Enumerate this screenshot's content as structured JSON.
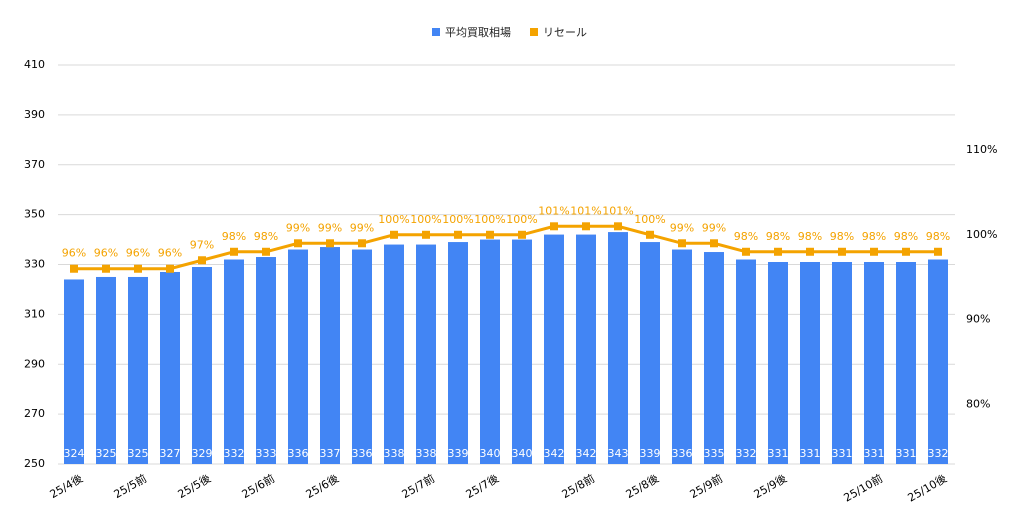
{
  "chart_data": {
    "type": "bar-line",
    "categories": [
      "25/4後",
      null,
      "25/5前",
      null,
      "25/5後",
      null,
      "25/6前",
      null,
      "25/6後",
      null,
      null,
      "25/7前",
      null,
      "25/7後",
      null,
      null,
      "25/8前",
      null,
      "25/8後",
      null,
      "25/9前",
      null,
      "25/9後",
      null,
      null,
      "25/10前",
      null,
      "25/10後"
    ],
    "series": [
      {
        "name": "平均買取相場",
        "type": "bar",
        "color": "#4285f4",
        "values": [
          324,
          325,
          325,
          327,
          329,
          332,
          333,
          336,
          337,
          336,
          338,
          338,
          339,
          340,
          340,
          342,
          342,
          343,
          339,
          336,
          335,
          332,
          331,
          331,
          331,
          331,
          331,
          332
        ]
      },
      {
        "name": "リセール",
        "type": "line",
        "axis": "y2",
        "color": "#f4a300",
        "values": [
          96,
          96,
          96,
          96,
          97,
          98,
          98,
          99,
          99,
          99,
          100,
          100,
          100,
          100,
          100,
          101,
          101,
          101,
          100,
          99,
          99,
          98,
          98,
          98,
          98,
          98,
          98,
          98
        ],
        "value_labels": [
          "96%",
          "96%",
          "96%",
          "96%",
          "97%",
          "98%",
          "98%",
          "99%",
          "99%",
          "99%",
          "100%",
          "100%",
          "100%",
          "100%",
          "100%",
          "101%",
          "101%",
          "101%",
          "100%",
          "99%",
          "99%",
          "98%",
          "98%",
          "98%",
          "98%",
          "98%",
          "98%",
          "98%"
        ]
      }
    ],
    "ylim": [
      250,
      410
    ],
    "yticks": [
      250,
      270,
      290,
      310,
      330,
      350,
      370,
      390,
      410
    ],
    "y2lim": [
      73,
      120
    ],
    "y2ticks": [
      {
        "value": 80,
        "label": "80%"
      },
      {
        "value": 90,
        "label": "90%"
      },
      {
        "value": 100,
        "label": "100%"
      },
      {
        "value": 110,
        "label": "110%"
      }
    ],
    "grid": true,
    "legend": "top"
  }
}
